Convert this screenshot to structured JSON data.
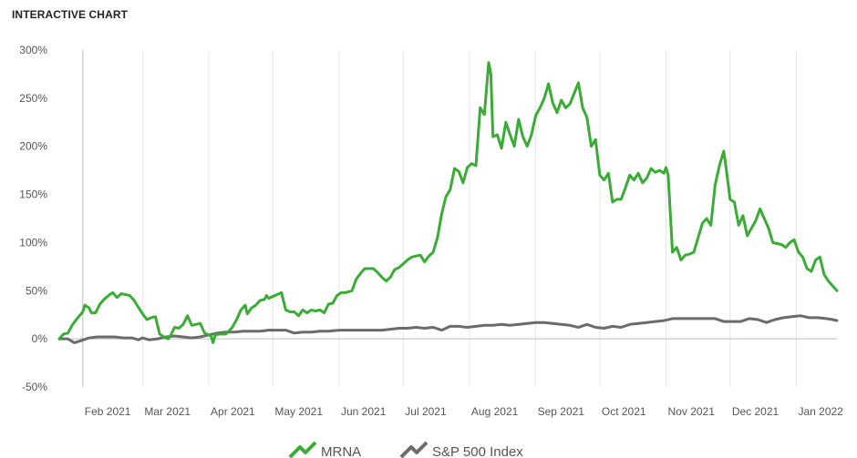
{
  "header": {
    "title": "INTERACTIVE CHART"
  },
  "chart_data": {
    "type": "line",
    "title": "",
    "xlabel": "",
    "ylabel": "",
    "ylim": [
      -50,
      300
    ],
    "y_ticks": [
      300,
      250,
      200,
      150,
      100,
      50,
      0,
      -50
    ],
    "y_tick_labels": [
      "300%",
      "250%",
      "200%",
      "150%",
      "100%",
      "50%",
      "0%",
      "-50%"
    ],
    "x_tick_labels": [
      "Feb 2021",
      "Mar 2021",
      "Apr 2021",
      "May 2021",
      "Jun 2021",
      "Jul 2021",
      "Aug 2021",
      "Sep 2021",
      "Oct 2021",
      "Nov 2021",
      "Dec 2021",
      "Jan 2022"
    ],
    "x_range": [
      "2021-01-21",
      "2022-01-20"
    ],
    "grid": "vertical at month starts; horizontal zero line",
    "legend_position": "bottom",
    "colors": {
      "MRNA": "#3aac36",
      "S&P 500 Index": "#6b6b6b",
      "grid": "#e6e6e6",
      "axis": "#bdbdbd"
    },
    "series": [
      {
        "name": "MRNA",
        "points": [
          [
            "2021-01-21",
            0
          ],
          [
            "2021-01-23",
            5
          ],
          [
            "2021-01-25",
            6
          ],
          [
            "2021-01-27",
            14
          ],
          [
            "2021-01-29",
            20
          ],
          [
            "2021-02-01",
            28
          ],
          [
            "2021-02-02",
            35
          ],
          [
            "2021-02-04",
            32
          ],
          [
            "2021-02-05",
            27
          ],
          [
            "2021-02-07",
            27
          ],
          [
            "2021-02-09",
            36
          ],
          [
            "2021-02-11",
            41
          ],
          [
            "2021-02-13",
            45
          ],
          [
            "2021-02-15",
            48
          ],
          [
            "2021-02-17",
            43
          ],
          [
            "2021-02-19",
            47
          ],
          [
            "2021-02-21",
            46
          ],
          [
            "2021-02-23",
            45
          ],
          [
            "2021-02-25",
            40
          ],
          [
            "2021-02-27",
            33
          ],
          [
            "2021-03-01",
            26
          ],
          [
            "2021-03-03",
            20
          ],
          [
            "2021-03-05",
            22
          ],
          [
            "2021-03-07",
            23
          ],
          [
            "2021-03-09",
            5
          ],
          [
            "2021-03-11",
            2
          ],
          [
            "2021-03-13",
            0
          ],
          [
            "2021-03-14",
            3
          ],
          [
            "2021-03-16",
            12
          ],
          [
            "2021-03-18",
            11
          ],
          [
            "2021-03-20",
            15
          ],
          [
            "2021-03-22",
            24
          ],
          [
            "2021-03-24",
            14
          ],
          [
            "2021-03-26",
            15
          ],
          [
            "2021-03-28",
            16
          ],
          [
            "2021-03-30",
            6
          ],
          [
            "2021-04-01",
            4
          ],
          [
            "2021-04-02",
            3
          ],
          [
            "2021-04-03",
            -4
          ],
          [
            "2021-04-04",
            4
          ],
          [
            "2021-04-06",
            5
          ],
          [
            "2021-04-09",
            5
          ],
          [
            "2021-04-12",
            12
          ],
          [
            "2021-04-14",
            20
          ],
          [
            "2021-04-16",
            30
          ],
          [
            "2021-04-18",
            35
          ],
          [
            "2021-04-19",
            26
          ],
          [
            "2021-04-21",
            32
          ],
          [
            "2021-04-23",
            35
          ],
          [
            "2021-04-25",
            40
          ],
          [
            "2021-04-27",
            41
          ],
          [
            "2021-04-28",
            45
          ],
          [
            "2021-04-29",
            42
          ],
          [
            "2021-05-01",
            44
          ],
          [
            "2021-05-03",
            46
          ],
          [
            "2021-05-05",
            48
          ],
          [
            "2021-05-07",
            30
          ],
          [
            "2021-05-09",
            28
          ],
          [
            "2021-05-11",
            28
          ],
          [
            "2021-05-13",
            24
          ],
          [
            "2021-05-15",
            30
          ],
          [
            "2021-05-17",
            27
          ],
          [
            "2021-05-19",
            30
          ],
          [
            "2021-05-21",
            29
          ],
          [
            "2021-05-23",
            30
          ],
          [
            "2021-05-25",
            27
          ],
          [
            "2021-05-27",
            36
          ],
          [
            "2021-05-29",
            37
          ],
          [
            "2021-05-31",
            45
          ],
          [
            "2021-06-02",
            48
          ],
          [
            "2021-06-04",
            48
          ],
          [
            "2021-06-07",
            50
          ],
          [
            "2021-06-09",
            62
          ],
          [
            "2021-06-11",
            68
          ],
          [
            "2021-06-13",
            73
          ],
          [
            "2021-06-15",
            73
          ],
          [
            "2021-06-17",
            73
          ],
          [
            "2021-06-19",
            69
          ],
          [
            "2021-06-21",
            64
          ],
          [
            "2021-06-23",
            60
          ],
          [
            "2021-06-25",
            64
          ],
          [
            "2021-06-27",
            72
          ],
          [
            "2021-06-29",
            74
          ],
          [
            "2021-07-01",
            78
          ],
          [
            "2021-07-03",
            82
          ],
          [
            "2021-07-05",
            85
          ],
          [
            "2021-07-07",
            86
          ],
          [
            "2021-07-09",
            87
          ],
          [
            "2021-07-11",
            80
          ],
          [
            "2021-07-13",
            86
          ],
          [
            "2021-07-15",
            90
          ],
          [
            "2021-07-17",
            105
          ],
          [
            "2021-07-19",
            130
          ],
          [
            "2021-07-21",
            148
          ],
          [
            "2021-07-23",
            155
          ],
          [
            "2021-07-25",
            177
          ],
          [
            "2021-07-27",
            174
          ],
          [
            "2021-07-29",
            162
          ],
          [
            "2021-07-31",
            178
          ],
          [
            "2021-08-02",
            182
          ],
          [
            "2021-08-04",
            180
          ],
          [
            "2021-08-06",
            240
          ],
          [
            "2021-08-08",
            233
          ],
          [
            "2021-08-10",
            287
          ],
          [
            "2021-08-11",
            275
          ],
          [
            "2021-08-12",
            210
          ],
          [
            "2021-08-14",
            212
          ],
          [
            "2021-08-16",
            198
          ],
          [
            "2021-08-18",
            225
          ],
          [
            "2021-08-20",
            212
          ],
          [
            "2021-08-22",
            200
          ],
          [
            "2021-08-24",
            228
          ],
          [
            "2021-08-26",
            210
          ],
          [
            "2021-08-28",
            200
          ],
          [
            "2021-08-30",
            212
          ],
          [
            "2021-09-01",
            232
          ],
          [
            "2021-09-03",
            240
          ],
          [
            "2021-09-05",
            250
          ],
          [
            "2021-09-07",
            265
          ],
          [
            "2021-09-09",
            245
          ],
          [
            "2021-09-11",
            235
          ],
          [
            "2021-09-13",
            248
          ],
          [
            "2021-09-15",
            240
          ],
          [
            "2021-09-17",
            244
          ],
          [
            "2021-09-19",
            255
          ],
          [
            "2021-09-21",
            266
          ],
          [
            "2021-09-23",
            240
          ],
          [
            "2021-09-25",
            230
          ],
          [
            "2021-09-27",
            200
          ],
          [
            "2021-09-29",
            207
          ],
          [
            "2021-10-01",
            170
          ],
          [
            "2021-10-03",
            165
          ],
          [
            "2021-10-05",
            172
          ],
          [
            "2021-10-07",
            142
          ],
          [
            "2021-10-09",
            145
          ],
          [
            "2021-10-11",
            145
          ],
          [
            "2021-10-13",
            157
          ],
          [
            "2021-10-15",
            170
          ],
          [
            "2021-10-17",
            165
          ],
          [
            "2021-10-19",
            172
          ],
          [
            "2021-10-21",
            162
          ],
          [
            "2021-10-23",
            167
          ],
          [
            "2021-10-25",
            177
          ],
          [
            "2021-10-27",
            173
          ],
          [
            "2021-10-29",
            175
          ],
          [
            "2021-10-31",
            172
          ],
          [
            "2021-11-01",
            178
          ],
          [
            "2021-11-02",
            170
          ],
          [
            "2021-11-04",
            90
          ],
          [
            "2021-11-06",
            95
          ],
          [
            "2021-11-08",
            82
          ],
          [
            "2021-11-10",
            87
          ],
          [
            "2021-11-12",
            88
          ],
          [
            "2021-11-14",
            90
          ],
          [
            "2021-11-16",
            105
          ],
          [
            "2021-11-18",
            120
          ],
          [
            "2021-11-20",
            125
          ],
          [
            "2021-11-22",
            118
          ],
          [
            "2021-11-24",
            160
          ],
          [
            "2021-11-26",
            180
          ],
          [
            "2021-11-28",
            195
          ],
          [
            "2021-11-29",
            180
          ],
          [
            "2021-12-01",
            145
          ],
          [
            "2021-12-03",
            142
          ],
          [
            "2021-12-05",
            118
          ],
          [
            "2021-12-07",
            128
          ],
          [
            "2021-12-09",
            107
          ],
          [
            "2021-12-11",
            115
          ],
          [
            "2021-12-13",
            123
          ],
          [
            "2021-12-15",
            135
          ],
          [
            "2021-12-17",
            125
          ],
          [
            "2021-12-19",
            115
          ],
          [
            "2021-12-21",
            100
          ],
          [
            "2021-12-23",
            99
          ],
          [
            "2021-12-25",
            98
          ],
          [
            "2021-12-27",
            95
          ],
          [
            "2021-12-29",
            100
          ],
          [
            "2021-12-31",
            103
          ],
          [
            "2022-01-02",
            90
          ],
          [
            "2022-01-04",
            85
          ],
          [
            "2022-01-06",
            73
          ],
          [
            "2022-01-08",
            70
          ],
          [
            "2022-01-10",
            82
          ],
          [
            "2022-01-12",
            85
          ],
          [
            "2022-01-14",
            67
          ],
          [
            "2022-01-16",
            60
          ],
          [
            "2022-01-18",
            55
          ],
          [
            "2022-01-20",
            50
          ]
        ]
      },
      {
        "name": "S&P 500 Index",
        "points": [
          [
            "2021-01-21",
            0
          ],
          [
            "2021-01-25",
            0
          ],
          [
            "2021-01-28",
            -4
          ],
          [
            "2021-01-31",
            -2
          ],
          [
            "2021-02-04",
            1
          ],
          [
            "2021-02-08",
            2
          ],
          [
            "2021-02-12",
            2
          ],
          [
            "2021-02-16",
            2
          ],
          [
            "2021-02-20",
            1
          ],
          [
            "2021-02-24",
            1
          ],
          [
            "2021-02-27",
            -1
          ],
          [
            "2021-03-01",
            1
          ],
          [
            "2021-03-04",
            -1
          ],
          [
            "2021-03-08",
            0
          ],
          [
            "2021-03-12",
            2
          ],
          [
            "2021-03-16",
            3
          ],
          [
            "2021-03-20",
            2
          ],
          [
            "2021-03-24",
            1
          ],
          [
            "2021-03-28",
            2
          ],
          [
            "2021-04-01",
            4
          ],
          [
            "2021-04-05",
            6
          ],
          [
            "2021-04-09",
            7
          ],
          [
            "2021-04-13",
            7
          ],
          [
            "2021-04-17",
            8
          ],
          [
            "2021-04-21",
            8
          ],
          [
            "2021-04-25",
            8
          ],
          [
            "2021-04-29",
            9
          ],
          [
            "2021-05-03",
            9
          ],
          [
            "2021-05-07",
            9
          ],
          [
            "2021-05-11",
            6
          ],
          [
            "2021-05-15",
            7
          ],
          [
            "2021-05-19",
            7
          ],
          [
            "2021-05-23",
            8
          ],
          [
            "2021-05-27",
            8
          ],
          [
            "2021-06-01",
            9
          ],
          [
            "2021-06-05",
            9
          ],
          [
            "2021-06-09",
            9
          ],
          [
            "2021-06-13",
            9
          ],
          [
            "2021-06-17",
            9
          ],
          [
            "2021-06-21",
            9
          ],
          [
            "2021-06-25",
            10
          ],
          [
            "2021-06-29",
            11
          ],
          [
            "2021-07-03",
            11
          ],
          [
            "2021-07-07",
            12
          ],
          [
            "2021-07-11",
            11
          ],
          [
            "2021-07-15",
            12
          ],
          [
            "2021-07-19",
            9
          ],
          [
            "2021-07-23",
            13
          ],
          [
            "2021-07-27",
            13
          ],
          [
            "2021-07-31",
            12
          ],
          [
            "2021-08-04",
            13
          ],
          [
            "2021-08-08",
            14
          ],
          [
            "2021-08-12",
            14
          ],
          [
            "2021-08-16",
            15
          ],
          [
            "2021-08-20",
            14
          ],
          [
            "2021-08-24",
            15
          ],
          [
            "2021-08-28",
            16
          ],
          [
            "2021-09-01",
            17
          ],
          [
            "2021-09-05",
            17
          ],
          [
            "2021-09-09",
            16
          ],
          [
            "2021-09-13",
            15
          ],
          [
            "2021-09-17",
            14
          ],
          [
            "2021-09-21",
            12
          ],
          [
            "2021-09-25",
            15
          ],
          [
            "2021-09-29",
            12
          ],
          [
            "2021-10-03",
            11
          ],
          [
            "2021-10-07",
            13
          ],
          [
            "2021-10-11",
            12
          ],
          [
            "2021-10-15",
            15
          ],
          [
            "2021-10-19",
            16
          ],
          [
            "2021-10-23",
            17
          ],
          [
            "2021-10-27",
            18
          ],
          [
            "2021-10-31",
            19
          ],
          [
            "2021-11-04",
            21
          ],
          [
            "2021-11-08",
            21
          ],
          [
            "2021-11-12",
            21
          ],
          [
            "2021-11-16",
            21
          ],
          [
            "2021-11-20",
            21
          ],
          [
            "2021-11-24",
            21
          ],
          [
            "2021-11-28",
            18
          ],
          [
            "2021-12-02",
            18
          ],
          [
            "2021-12-06",
            18
          ],
          [
            "2021-12-10",
            21
          ],
          [
            "2021-12-14",
            20
          ],
          [
            "2021-12-18",
            17
          ],
          [
            "2021-12-22",
            20
          ],
          [
            "2021-12-26",
            22
          ],
          [
            "2021-12-30",
            23
          ],
          [
            "2022-01-03",
            24
          ],
          [
            "2022-01-07",
            22
          ],
          [
            "2022-01-11",
            22
          ],
          [
            "2022-01-15",
            21
          ],
          [
            "2022-01-18",
            20
          ],
          [
            "2022-01-20",
            19
          ]
        ]
      }
    ]
  }
}
